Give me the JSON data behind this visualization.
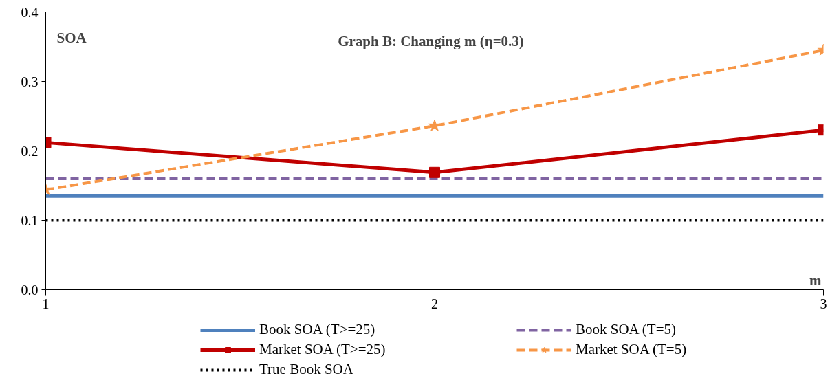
{
  "chart_data": {
    "type": "line",
    "title": "Graph B: Changing m (η=0.3)",
    "xlabel": "m",
    "ylabel": "SOA",
    "x": [
      1,
      2,
      3
    ],
    "xlim": [
      1,
      3
    ],
    "xticks": [
      1,
      2,
      3
    ],
    "ylim": [
      0,
      0.4
    ],
    "yticks": [
      {
        "value": 0,
        "label": "0.0"
      },
      0.1,
      0.2,
      0.3,
      0.4
    ],
    "grid": false,
    "legend": "bottom",
    "series": [
      {
        "name": "Book SOA (T>=25)",
        "color": "#4f81bd",
        "values": [
          0.135,
          0.135,
          0.135
        ],
        "marker": "none",
        "line_style": "solid"
      },
      {
        "name": "Book SOA (T=5)",
        "color": "#8064a2",
        "values": [
          0.16,
          0.16,
          0.16
        ],
        "marker": "none",
        "line_style": "dashed"
      },
      {
        "name": "Market SOA (T>=25)",
        "color": "#c00000",
        "values": [
          0.212,
          0.169,
          0.23
        ],
        "marker": "square",
        "line_style": "solid"
      },
      {
        "name": "Market SOA (T=5)",
        "color": "#f79646",
        "values": [
          0.144,
          0.236,
          0.345
        ],
        "marker": "star",
        "line_style": "dashed"
      },
      {
        "name": "True Book SOA",
        "color": "#000000",
        "values": [
          0.1,
          0.1,
          0.1
        ],
        "marker": "none",
        "line_style": "dotted"
      }
    ]
  }
}
